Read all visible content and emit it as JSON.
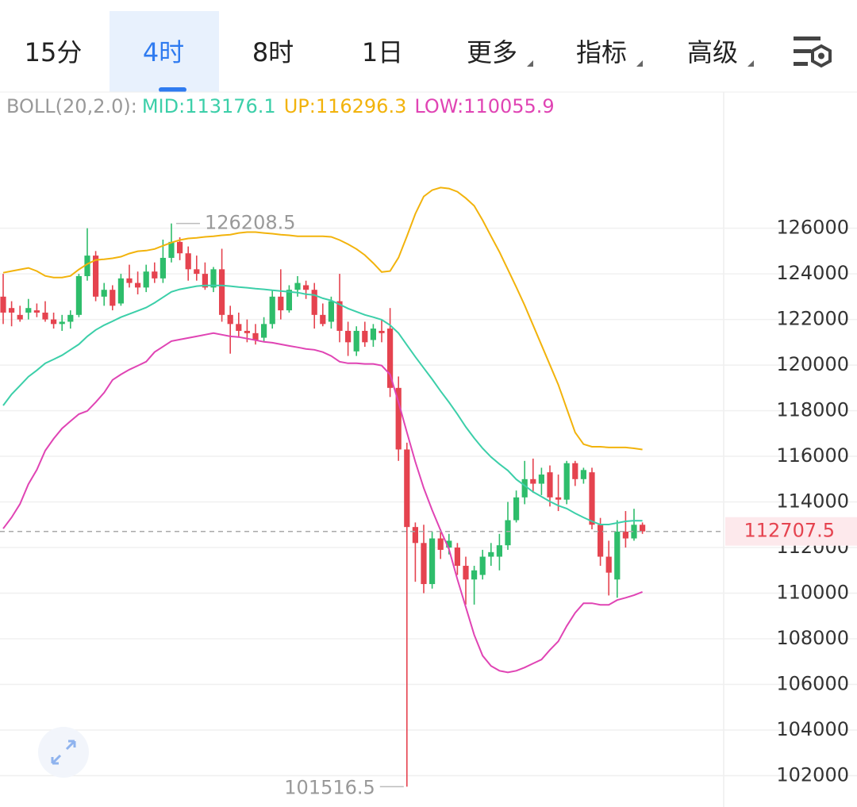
{
  "tabs": [
    "15分",
    "4时",
    "8时",
    "1日",
    "更多",
    "指标",
    "高级"
  ],
  "active_tab": 1,
  "indicator": {
    "label": "BOLL(20,2.0):",
    "items": [
      "MID:113176.1",
      "UP:116296.3",
      "LOW:110055.9"
    ]
  },
  "chart_data": {
    "type": "candlestick",
    "up_color": "#2ebd6b",
    "down_color": "#e5434f",
    "open": [
      123000,
      122500,
      122200,
      122300,
      122400,
      122300,
      122000,
      121800,
      121900,
      122200,
      123900,
      124800,
      123000,
      123300,
      122700,
      123800,
      123600,
      123400,
      124100,
      123800,
      124700,
      125400,
      124900,
      124200,
      124000,
      123400,
      124200,
      122200,
      121800,
      121500,
      121400,
      121200,
      121800,
      123000,
      122400,
      123300,
      123500,
      123300,
      122200,
      121900,
      122800,
      121500,
      120600,
      121500,
      121100,
      121500,
      121600,
      119000,
      116300,
      112900,
      112200,
      110400,
      112400,
      112000,
      112000,
      111200,
      110600,
      110800,
      111600,
      111600,
      112100,
      113200,
      114200,
      115000,
      114800,
      115300,
      114200,
      114100,
      115700,
      115000,
      115300,
      113000,
      111600,
      110600,
      112700,
      112400,
      113000
    ],
    "high": [
      124000,
      122800,
      122600,
      122900,
      122700,
      122800,
      122300,
      122200,
      122400,
      124000,
      126000,
      125000,
      123600,
      123500,
      124000,
      124400,
      124100,
      124400,
      124500,
      125500,
      126208.5,
      125600,
      125200,
      124800,
      124500,
      124300,
      125100,
      122600,
      122300,
      122000,
      121800,
      122100,
      123300,
      124200,
      123500,
      123900,
      123700,
      123600,
      122700,
      123000,
      124000,
      121900,
      121700,
      121900,
      121800,
      122000,
      122500,
      119500,
      116600,
      113100,
      113000,
      112700,
      112800,
      112600,
      112200,
      111600,
      111200,
      111900,
      112200,
      112600,
      114000,
      114500,
      115800,
      115900,
      115500,
      115600,
      115200,
      115800,
      115800,
      115500,
      115500,
      113300,
      112300,
      113200,
      113600,
      113700,
      113100
    ],
    "low": [
      121800,
      121700,
      121900,
      122000,
      122100,
      121900,
      121600,
      121500,
      121600,
      122100,
      123700,
      122800,
      122600,
      122400,
      122600,
      123400,
      123100,
      123200,
      123600,
      123600,
      124500,
      124600,
      123700,
      123700,
      123300,
      123200,
      121900,
      120500,
      121200,
      121000,
      120900,
      121000,
      121600,
      122000,
      122300,
      123000,
      122900,
      121600,
      121700,
      121600,
      121000,
      120400,
      120400,
      120800,
      120800,
      121000,
      118600,
      115800,
      101516.5,
      110500,
      110000,
      110200,
      111500,
      111700,
      110800,
      109500,
      109500,
      110600,
      111200,
      111000,
      111900,
      113100,
      113900,
      114400,
      114300,
      113800,
      113600,
      113900,
      114700,
      114800,
      112800,
      111200,
      109900,
      109800,
      112000,
      112300,
      112600
    ],
    "close": [
      122300,
      122300,
      122000,
      122500,
      122300,
      122000,
      121800,
      121900,
      122200,
      123900,
      124800,
      123000,
      123300,
      122600,
      123800,
      123600,
      123400,
      124100,
      123800,
      124700,
      125400,
      124900,
      124200,
      124000,
      123400,
      124200,
      122200,
      121800,
      121500,
      121400,
      121100,
      121800,
      123000,
      122400,
      123300,
      123600,
      123300,
      122200,
      121800,
      122800,
      121500,
      121000,
      121500,
      121000,
      121600,
      121400,
      119000,
      116300,
      112900,
      112200,
      110400,
      112400,
      111900,
      112300,
      111200,
      110600,
      111000,
      111600,
      111800,
      112100,
      113200,
      114200,
      115000,
      114800,
      115200,
      114200,
      114100,
      115700,
      115000,
      115400,
      113000,
      111600,
      110900,
      112700,
      112400,
      113000,
      112707.5
    ],
    "series": [
      {
        "name": "MID",
        "color": "#3ccfa9",
        "values": [
          118230,
          118720,
          119100,
          119490,
          119770,
          120080,
          120250,
          120430,
          120670,
          120910,
          121260,
          121540,
          121750,
          121920,
          122100,
          122240,
          122380,
          122520,
          122730,
          122970,
          123210,
          123320,
          123390,
          123460,
          123490,
          123490,
          123490,
          123460,
          123420,
          123390,
          123350,
          123320,
          123280,
          123250,
          123210,
          123180,
          123110,
          123070,
          122930,
          122830,
          122660,
          122480,
          122340,
          122200,
          122100,
          121990,
          121750,
          121400,
          120880,
          120360,
          119870,
          119380,
          118860,
          118370,
          117850,
          117290,
          116800,
          116350,
          115970,
          115660,
          115380,
          114990,
          114720,
          114440,
          114230,
          114020,
          113840,
          113710,
          113500,
          113320,
          113150,
          113010,
          113010,
          113080,
          113150,
          113180,
          113176.1
        ]
      },
      {
        "name": "UP",
        "color": "#f2b30c",
        "values": [
          124050,
          124120,
          124190,
          124260,
          124120,
          123910,
          123840,
          123840,
          123910,
          124190,
          124430,
          124610,
          124640,
          124680,
          124750,
          124890,
          124990,
          125020,
          125090,
          125230,
          125370,
          125480,
          125550,
          125580,
          125620,
          125650,
          125690,
          125720,
          125790,
          125830,
          125830,
          125790,
          125760,
          125720,
          125690,
          125650,
          125650,
          125650,
          125650,
          125620,
          125480,
          125300,
          125090,
          124820,
          124470,
          124080,
          124120,
          124710,
          125650,
          126630,
          127390,
          127670,
          127780,
          127740,
          127600,
          127320,
          126980,
          126350,
          125650,
          124960,
          124190,
          123420,
          122620,
          121750,
          120880,
          120010,
          119140,
          118090,
          117050,
          116530,
          116420,
          116420,
          116390,
          116390,
          116390,
          116350,
          116296.3
        ]
      },
      {
        "name": "LOW",
        "color": "#e044b4",
        "values": [
          112830,
          113320,
          113910,
          114780,
          115410,
          116250,
          116770,
          117220,
          117540,
          117850,
          117990,
          118370,
          118790,
          119350,
          119590,
          119800,
          119970,
          120150,
          120570,
          120810,
          121050,
          121120,
          121190,
          121260,
          121330,
          121400,
          121330,
          121260,
          121230,
          121160,
          121090,
          121020,
          120980,
          120910,
          120840,
          120780,
          120710,
          120670,
          120570,
          120400,
          120150,
          120080,
          120080,
          120050,
          120050,
          119980,
          119590,
          118370,
          117050,
          115760,
          114610,
          113640,
          112760,
          111930,
          110610,
          109390,
          108170,
          107260,
          106810,
          106600,
          106530,
          106600,
          106740,
          106920,
          107090,
          107510,
          107890,
          108560,
          109140,
          109560,
          109560,
          109490,
          109490,
          109700,
          109800,
          109910,
          110055.9
        ]
      }
    ],
    "ylim": [
      100800,
      131900
    ],
    "yticks": [
      102000,
      104000,
      106000,
      108000,
      110000,
      112000,
      114000,
      116000,
      118000,
      120000,
      122000,
      124000,
      126000
    ],
    "grid": true
  }
}
